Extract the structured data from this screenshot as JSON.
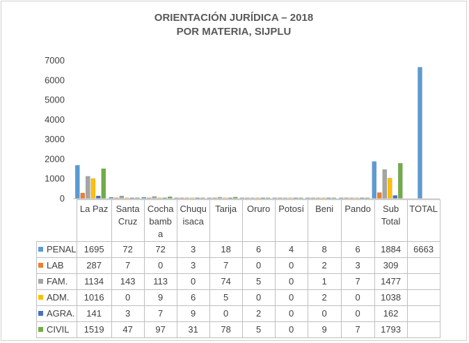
{
  "chart_data": {
    "type": "bar",
    "title_lines": [
      "ORIENTACIÓN JURÍDICA – 2018",
      "POR MATERIA, SIJPLU"
    ],
    "categories": [
      "La Paz",
      "Santa Cruz",
      "Cochabamba",
      "Chuquisaca",
      "Tarija",
      "Oruro",
      "Potosí",
      "Beni",
      "Pando",
      "Sub Total",
      "TOTAL"
    ],
    "category_display": [
      [
        "La Paz"
      ],
      [
        "Santa",
        "Cruz"
      ],
      [
        "Cocha",
        "bamb",
        "a"
      ],
      [
        "Chuqu",
        "isaca"
      ],
      [
        "Tarija"
      ],
      [
        "Oruro"
      ],
      [
        "Potosí"
      ],
      [
        "Beni"
      ],
      [
        "Pando"
      ],
      [
        "Sub",
        "Total"
      ],
      [
        "TOTAL"
      ]
    ],
    "series": [
      {
        "name": "PENAL",
        "color": "#5B9BD5",
        "values": [
          1695,
          72,
          72,
          3,
          18,
          6,
          4,
          8,
          6,
          1884,
          6663
        ]
      },
      {
        "name": "LAB",
        "color": "#ED7D31",
        "values": [
          287,
          7,
          0,
          3,
          7,
          0,
          0,
          2,
          3,
          309,
          null
        ]
      },
      {
        "name": "FAM.",
        "color": "#A5A5A5",
        "values": [
          1134,
          143,
          113,
          0,
          74,
          5,
          0,
          1,
          7,
          1477,
          null
        ]
      },
      {
        "name": "ADM.",
        "color": "#FFC000",
        "values": [
          1016,
          0,
          9,
          6,
          5,
          0,
          0,
          2,
          0,
          1038,
          null
        ]
      },
      {
        "name": "AGRA.",
        "color": "#4472C4",
        "values": [
          141,
          3,
          7,
          9,
          0,
          2,
          0,
          0,
          0,
          162,
          null
        ]
      },
      {
        "name": "CIVIL",
        "color": "#70AD47",
        "values": [
          1519,
          47,
          97,
          31,
          78,
          5,
          0,
          9,
          7,
          1793,
          null
        ]
      }
    ],
    "yticks": [
      0,
      1000,
      2000,
      3000,
      4000,
      5000,
      6000,
      7000
    ],
    "ylim": [
      0,
      7000
    ],
    "grid": false,
    "legend": "data-table"
  }
}
